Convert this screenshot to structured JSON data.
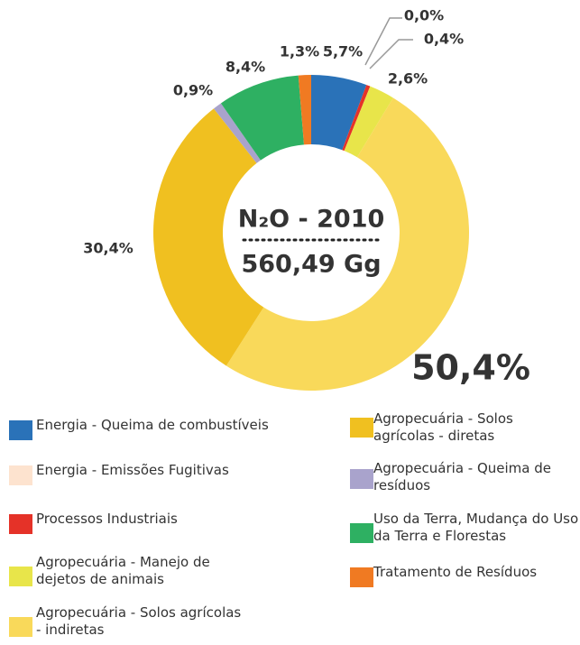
{
  "chart_data": {
    "type": "donut",
    "center_title": "N₂O - 2010",
    "center_value": "560,49 Gg",
    "categories": [
      "Energia - Queima de combustíveis",
      "Energia - Emissões Fugitivas",
      "Processos Industriais",
      "Agropecuária - Manejo de dejetos de animais",
      "Agropecuária - Solos agrícolas - indiretas",
      "Agropecuária - Solos agrícolas - diretas",
      "Agropecuária - Queima de resíduos",
      "Uso da Terra, Mudança do Uso da Terra e Florestas",
      "Tratamento de Resíduos"
    ],
    "values": [
      5.7,
      0.0,
      0.4,
      2.6,
      50.4,
      30.4,
      0.9,
      8.4,
      1.3
    ],
    "value_labels": [
      "5,7%",
      "0,0%",
      "0,4%",
      "2,6%",
      "50,4%",
      "30,4%",
      "0,9%",
      "8,4%",
      "1,3%"
    ],
    "colors": [
      "#2a72b8",
      "#fde3cf",
      "#e53228",
      "#e8e54a",
      "#f9d95a",
      "#f0c020",
      "#a9a3cc",
      "#2eb062",
      "#f07a22"
    ]
  }
}
